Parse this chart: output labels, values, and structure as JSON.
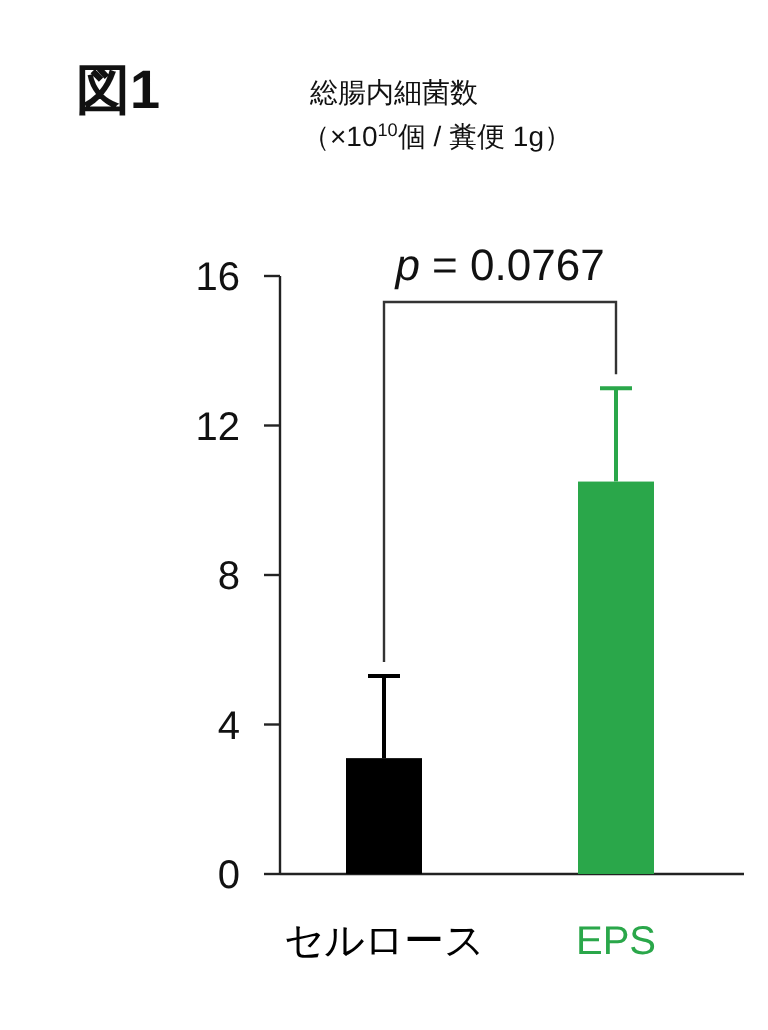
{
  "chart_data": {
    "type": "bar",
    "title": "図1",
    "ylabel": "総腸内細菌数（×10$^{10}$個 / 糞便 1g）",
    "categories": [
      "セルロース",
      "EPS"
    ],
    "values": [
      3.1,
      10.5
    ],
    "colors": [
      "#000000",
      "#2aa74a"
    ],
    "errors": [
      [
        3.1,
        5.3
      ],
      [
        10.5,
        13.0
      ]
    ],
    "ylim": [
      0,
      16
    ],
    "yticks": [
      0,
      4,
      8,
      12,
      16
    ],
    "annotations": [
      "p = 0.0767"
    ]
  }
}
